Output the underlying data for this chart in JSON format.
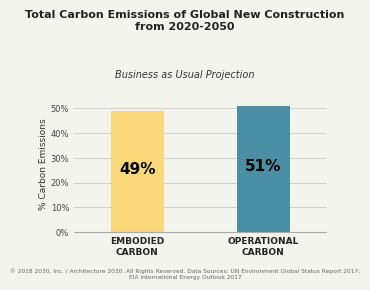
{
  "title_line1": "Total Carbon Emissions of Global New Construction",
  "title_line2": "from 2020-2050",
  "subtitle": "Business as Usual Projection",
  "categories": [
    "EMBODIED\nCARBON",
    "OPERATIONAL\nCARBON"
  ],
  "values": [
    49,
    51
  ],
  "bar_colors": [
    "#F9D87A",
    "#4A8FA3"
  ],
  "bar_labels": [
    "49%",
    "51%"
  ],
  "ylabel": "% Carbon Emissions",
  "ylim": [
    0,
    55
  ],
  "yticks": [
    0,
    10,
    20,
    30,
    40,
    50
  ],
  "ytick_labels": [
    "0%",
    "10%",
    "20%",
    "30%",
    "40%",
    "50%"
  ],
  "footnote": "© 2018 2030, Inc. / Architecture 2030. All Rights Reserved. Data Sources: UN Environment Global Status Report 2017;\nEIA International Energy Outlook 2017",
  "background_color": "#f4f4ef",
  "title_fontsize": 8.0,
  "subtitle_fontsize": 7.0,
  "label_fontsize": 11,
  "ylabel_fontsize": 6.5,
  "tick_fontsize": 6.0,
  "footnote_fontsize": 4.2,
  "xlabel_fontsize": 6.5,
  "bar_width": 0.42
}
